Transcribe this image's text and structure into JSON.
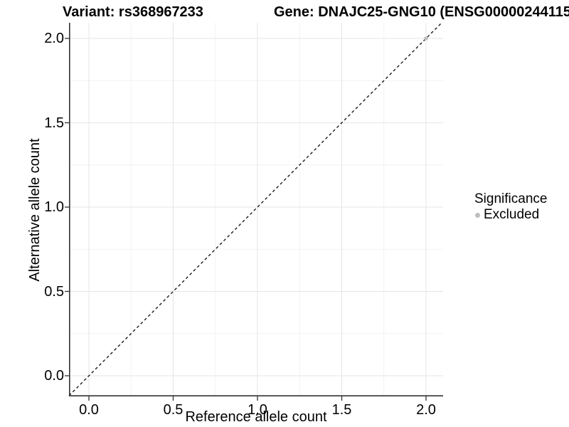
{
  "chart_data": {
    "type": "scatter",
    "title": "Variant: rs368967233",
    "title_right": "Gene: DNAJC25-GNG10 (ENSG00000244115",
    "xlabel": "Reference allele count",
    "ylabel": "Alternative allele count",
    "x_tick_labels": [
      "0.0",
      "0.5",
      "1.0",
      "1.5",
      "2.0"
    ],
    "y_tick_labels": [
      "0.0",
      "0.5",
      "1.0",
      "1.5",
      "2.0"
    ],
    "minor_gridlines": [
      0.25,
      0.75,
      1.25,
      1.75
    ],
    "xlim": [
      -0.118,
      2.1
    ],
    "ylim": [
      -0.122,
      2.093
    ],
    "grid": "major+minor",
    "points": [
      {
        "x": 2.0,
        "y": 2.0,
        "series": "Excluded",
        "color": "#bebebe"
      }
    ],
    "reference_line": {
      "kind": "identity",
      "slope": 1,
      "intercept": 0,
      "style": "dashed",
      "color": "#1a1a1a"
    },
    "legend": {
      "title": "Significance",
      "position": "right",
      "entries": [
        {
          "label": "Excluded",
          "color": "#bebebe"
        }
      ]
    },
    "colors": {
      "axis_line": "#333333",
      "major_grid": "#e6e6e6",
      "minor_grid": "#f2f2f2",
      "text": "#000000",
      "background": "#ffffff"
    }
  }
}
